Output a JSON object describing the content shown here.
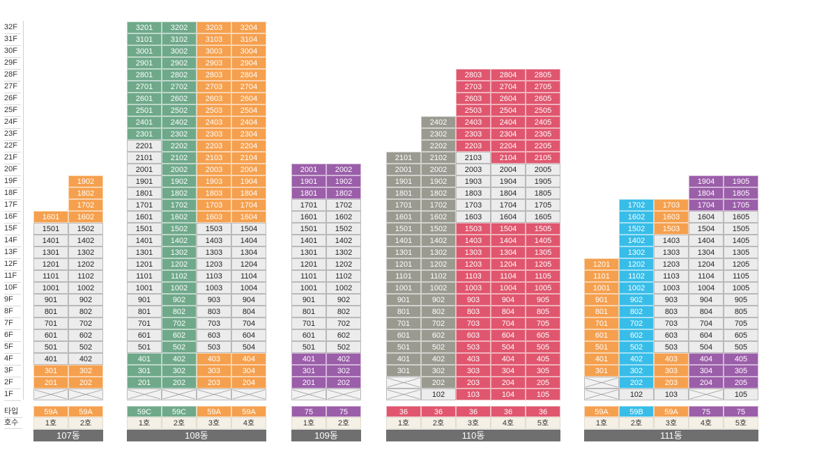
{
  "floors": [
    "32F",
    "31F",
    "30F",
    "29F",
    "28F",
    "27F",
    "26F",
    "25F",
    "24F",
    "23F",
    "22F",
    "21F",
    "20F",
    "19F",
    "18F",
    "17F",
    "16F",
    "15F",
    "14F",
    "13F",
    "12F",
    "11F",
    "10F",
    "9F",
    "8F",
    "7F",
    "6F",
    "5F",
    "4F",
    "3F",
    "2F",
    "1F"
  ],
  "row_labels": {
    "type": "타입",
    "unit": "호수"
  },
  "colors": {
    "orange": "#f5a04e",
    "green": "#6fa98a",
    "purple": "#9b5ea9",
    "gray": "#9a9a90",
    "red": "#e0566e",
    "blue": "#38bde8",
    "white": "#ececec"
  },
  "buildings": [
    {
      "name": "107동",
      "columns": [
        {
          "ho": "1호",
          "type": "59A",
          "type_color": "orange",
          "segments": [
            [
              "pilotis",
              1,
              1
            ],
            [
              "orange",
              2,
              3
            ],
            [
              "white",
              4,
              15
            ],
            [
              "orange",
              16,
              16
            ]
          ]
        },
        {
          "ho": "2호",
          "type": "59A",
          "type_color": "orange",
          "segments": [
            [
              "pilotis",
              1,
              1
            ],
            [
              "orange",
              2,
              3
            ],
            [
              "white",
              4,
              15
            ],
            [
              "orange",
              16,
              19
            ]
          ]
        }
      ]
    },
    {
      "name": "108동",
      "columns": [
        {
          "ho": "1호",
          "type": "59C",
          "type_color": "green",
          "segments": [
            [
              "pilotis",
              1,
              1
            ],
            [
              "green",
              2,
              4
            ],
            [
              "white",
              5,
              22
            ],
            [
              "green",
              23,
              32
            ]
          ]
        },
        {
          "ho": "2호",
          "type": "59C",
          "type_color": "green",
          "segments": [
            [
              "pilotis",
              1,
              1
            ],
            [
              "green",
              2,
              32
            ]
          ]
        },
        {
          "ho": "3호",
          "type": "59A",
          "type_color": "orange",
          "segments": [
            [
              "pilotis",
              1,
              1
            ],
            [
              "orange",
              2,
              4
            ],
            [
              "white",
              5,
              15
            ],
            [
              "orange",
              16,
              32
            ]
          ]
        },
        {
          "ho": "4호",
          "type": "59A",
          "type_color": "orange",
          "segments": [
            [
              "pilotis",
              1,
              1
            ],
            [
              "orange",
              2,
              4
            ],
            [
              "white",
              5,
              15
            ],
            [
              "orange",
              16,
              32
            ]
          ]
        }
      ]
    },
    {
      "name": "109동",
      "columns": [
        {
          "ho": "1호",
          "type": "75",
          "type_color": "purple",
          "segments": [
            [
              "pilotis",
              1,
              1
            ],
            [
              "purple",
              2,
              4
            ],
            [
              "white",
              5,
              17
            ],
            [
              "purple",
              18,
              20
            ]
          ]
        },
        {
          "ho": "2호",
          "type": "75",
          "type_color": "purple",
          "segments": [
            [
              "pilotis",
              1,
              1
            ],
            [
              "purple",
              2,
              4
            ],
            [
              "white",
              5,
              17
            ],
            [
              "purple",
              18,
              20
            ]
          ]
        }
      ]
    },
    {
      "name": "110동",
      "columns": [
        {
          "ho": "1호",
          "type": "36",
          "type_color": "red",
          "segments": [
            [
              "pilotis",
              1,
              2
            ],
            [
              "gray",
              3,
              21
            ]
          ]
        },
        {
          "ho": "2호",
          "type": "36",
          "type_color": "red",
          "segments": [
            [
              "white",
              1,
              1
            ],
            [
              "gray",
              2,
              24
            ]
          ]
        },
        {
          "ho": "3호",
          "type": "36",
          "type_color": "red",
          "segments": [
            [
              "red",
              1,
              15
            ],
            [
              "white",
              16,
              21
            ],
            [
              "red",
              22,
              28
            ]
          ]
        },
        {
          "ho": "4호",
          "type": "36",
          "type_color": "red",
          "segments": [
            [
              "red",
              1,
              15
            ],
            [
              "white",
              16,
              20
            ],
            [
              "red",
              21,
              28
            ]
          ]
        },
        {
          "ho": "5호",
          "type": "36",
          "type_color": "red",
          "segments": [
            [
              "red",
              1,
              15
            ],
            [
              "white",
              16,
              20
            ],
            [
              "red",
              21,
              28
            ]
          ]
        }
      ]
    },
    {
      "name": "111동",
      "columns": [
        {
          "ho": "1호",
          "type": "59A",
          "type_color": "orange",
          "segments": [
            [
              "pilotis",
              1,
              2
            ],
            [
              "orange",
              3,
              12
            ]
          ]
        },
        {
          "ho": "2호",
          "type": "59B",
          "type_color": "blue",
          "segments": [
            [
              "white",
              1,
              1
            ],
            [
              "blue",
              2,
              17
            ]
          ]
        },
        {
          "ho": "3호",
          "type": "59A",
          "type_color": "orange",
          "segments": [
            [
              "white",
              1,
              1
            ],
            [
              "orange",
              2,
              4
            ],
            [
              "white",
              5,
              14
            ],
            [
              "orange",
              15,
              17
            ]
          ]
        },
        {
          "ho": "4호",
          "type": "75",
          "type_color": "purple",
          "segments": [
            [
              "pilotis",
              1,
              1
            ],
            [
              "purple",
              2,
              4
            ],
            [
              "white",
              5,
              16
            ],
            [
              "purple",
              17,
              19
            ]
          ]
        },
        {
          "ho": "5호",
          "type": "75",
          "type_color": "purple",
          "segments": [
            [
              "white",
              1,
              1
            ],
            [
              "purple",
              2,
              4
            ],
            [
              "white",
              5,
              16
            ],
            [
              "purple",
              17,
              19
            ]
          ]
        }
      ]
    }
  ]
}
